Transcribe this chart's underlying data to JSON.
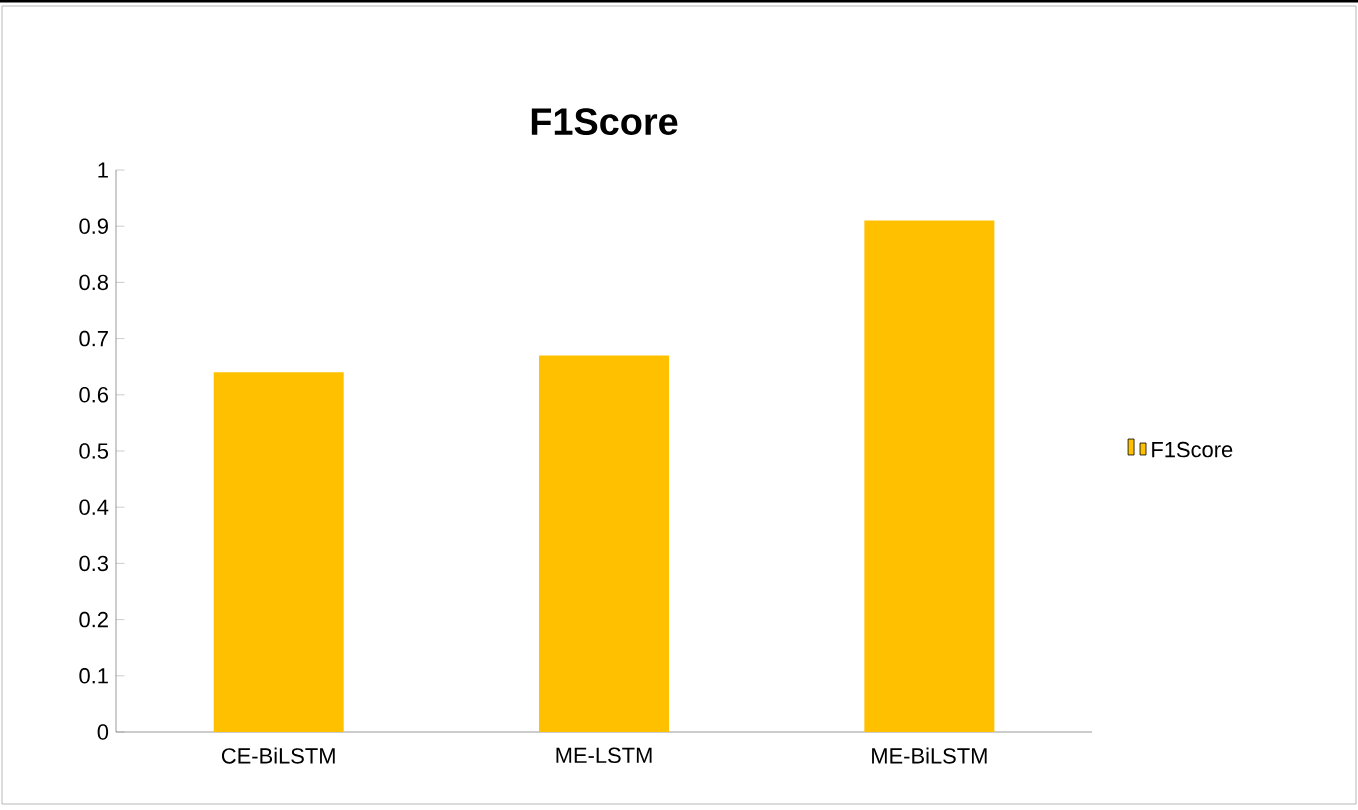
{
  "chart_data": {
    "type": "bar",
    "title": "F1Score",
    "categories": [
      "CE-BiLSTM",
      "ME-LSTM",
      "ME-BiLSTM"
    ],
    "series": [
      {
        "name": "F1Score",
        "color": "#ffc000",
        "values": [
          0.64,
          0.67,
          0.91
        ]
      }
    ],
    "ylim": [
      0,
      1
    ],
    "yticks": [
      0,
      0.1,
      0.2,
      0.3,
      0.4,
      0.5,
      0.6,
      0.7,
      0.8,
      0.9,
      1
    ],
    "grid": false,
    "legend": "right"
  }
}
